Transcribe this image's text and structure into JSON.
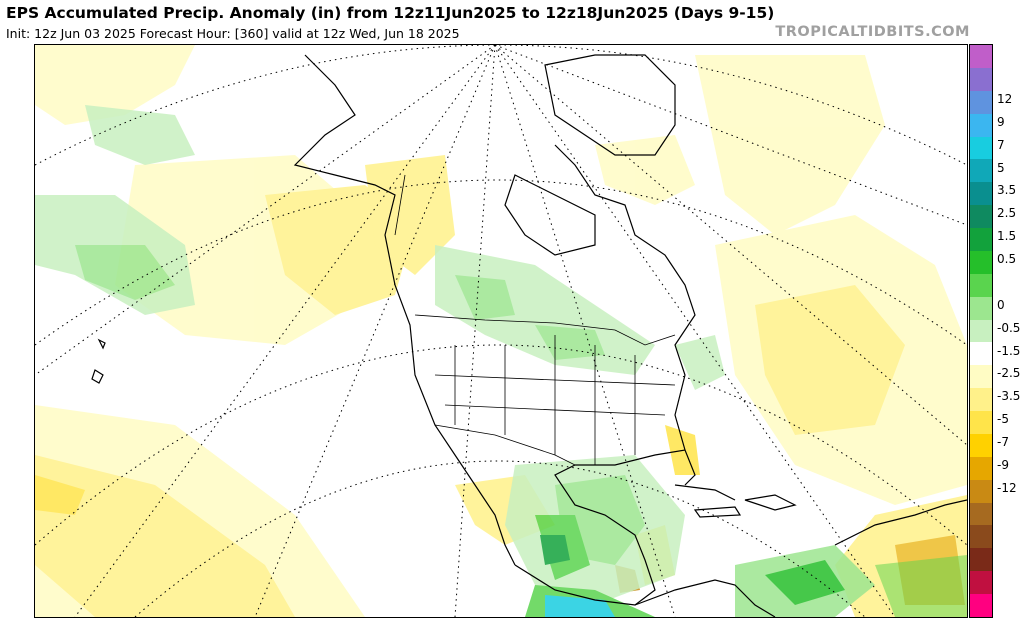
{
  "header": {
    "title": "EPS Accumulated Precip. Anomaly (in) from 12z11Jun2025 to 12z18Jun2025 (Days 9-15)",
    "subtitle": "Init: 12z Jun 03 2025   Forecast Hour: [360]   valid at 12z Wed, Jun 18 2025",
    "brand": "TROPICALTIDBITS.COM"
  },
  "colorbar": {
    "colors": [
      "#c05ec9",
      "#8a6fd0",
      "#5f93df",
      "#3bb6f0",
      "#18cde0",
      "#10a8b8",
      "#0a8f8f",
      "#0f8a60",
      "#12a23c",
      "#25bf2a",
      "#5ad44e",
      "#9ce68f",
      "#c8f0c0",
      "#ffffff",
      "#fffcc4",
      "#fff18a",
      "#ffe44a",
      "#ffd100",
      "#e6a700",
      "#c98a14",
      "#a66a20",
      "#8a4a1c",
      "#7a2a18",
      "#c01040",
      "#ff0080"
    ],
    "labels": [
      "12",
      "9",
      "7",
      "5",
      "3.5",
      "2.5",
      "1.5",
      "0.5",
      "0",
      "-0.5",
      "-1.5",
      "-2.5",
      "-3.5",
      "-5",
      "-7",
      "-9",
      "-12"
    ]
  },
  "map": {
    "projection": "polar-stereographic",
    "region": "North America"
  }
}
